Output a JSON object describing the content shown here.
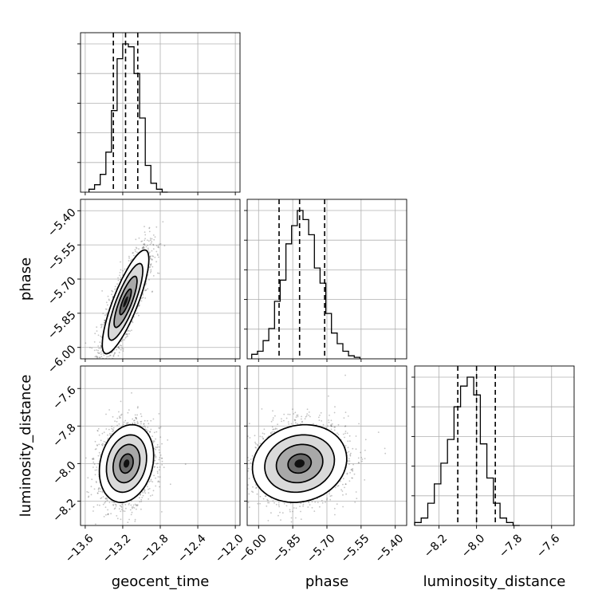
{
  "chart_data": {
    "type": "corner",
    "grid": true,
    "parameters": [
      {
        "name": "geocent_time",
        "label": "geocent_time",
        "range": [
          -13.65,
          -11.95
        ],
        "ticks": [
          -13.6,
          -13.2,
          -12.8,
          -12.4,
          -12.0
        ],
        "tick_labels": [
          "−13.6",
          "−13.2",
          "−12.8",
          "−12.4",
          "−12.0"
        ],
        "quantiles": [
          -13.3,
          -13.17,
          -13.04
        ]
      },
      {
        "name": "phase",
        "label": "phase",
        "range": [
          -6.05,
          -5.35
        ],
        "ticks": [
          -6.0,
          -5.85,
          -5.7,
          -5.55,
          -5.4
        ],
        "tick_labels": [
          "−6.00",
          "−5.85",
          "−5.70",
          "−5.55",
          "−5.40"
        ],
        "quantiles": [
          -5.91,
          -5.82,
          -5.71
        ]
      },
      {
        "name": "luminosity_distance",
        "label": "luminosity_distance",
        "range": [
          -8.33,
          -7.48
        ],
        "ticks": [
          -8.2,
          -8.0,
          -7.8,
          -7.6
        ],
        "tick_labels": [
          "−8.2",
          "−8.0",
          "−7.8",
          "−7.6"
        ],
        "quantiles": [
          -8.1,
          -8.0,
          -7.9
        ]
      }
    ],
    "histograms": [
      {
        "parameter": "geocent_time",
        "bin_width": 0.06,
        "edges_start": -13.56,
        "counts": [
          0.02,
          0.05,
          0.12,
          0.27,
          0.55,
          0.9,
          1.0,
          0.98,
          0.8,
          0.5,
          0.18,
          0.06,
          0.02,
          0.0
        ]
      },
      {
        "parameter": "phase",
        "bin_width": 0.025,
        "edges_start": -6.03,
        "counts": [
          0.03,
          0.05,
          0.12,
          0.2,
          0.38,
          0.52,
          0.76,
          0.88,
          0.98,
          0.92,
          0.82,
          0.6,
          0.5,
          0.3,
          0.17,
          0.1,
          0.05,
          0.02,
          0.01
        ]
      },
      {
        "parameter": "luminosity_distance",
        "bin_width": 0.035,
        "edges_start": -8.33,
        "counts": [
          0.02,
          0.05,
          0.15,
          0.28,
          0.42,
          0.58,
          0.8,
          0.94,
          1.0,
          0.88,
          0.55,
          0.32,
          0.15,
          0.05,
          0.02,
          0.0
        ]
      }
    ],
    "pairs": [
      {
        "x": "geocent_time",
        "y": "phase",
        "center": [
          -13.17,
          -5.8
        ],
        "sigma": [
          0.12,
          0.11
        ],
        "rho": 0.82
      },
      {
        "x": "geocent_time",
        "y": "luminosity_distance",
        "center": [
          -13.16,
          -8.0
        ],
        "sigma": [
          0.14,
          0.1
        ],
        "rho": 0.2
      },
      {
        "x": "phase",
        "y": "luminosity_distance",
        "center": [
          -5.82,
          -8.0
        ],
        "sigma": [
          0.1,
          0.1
        ],
        "rho": 0.12
      }
    ],
    "contour_levels_sigma": [
      0.5,
      1.0,
      1.5,
      2.0
    ]
  }
}
